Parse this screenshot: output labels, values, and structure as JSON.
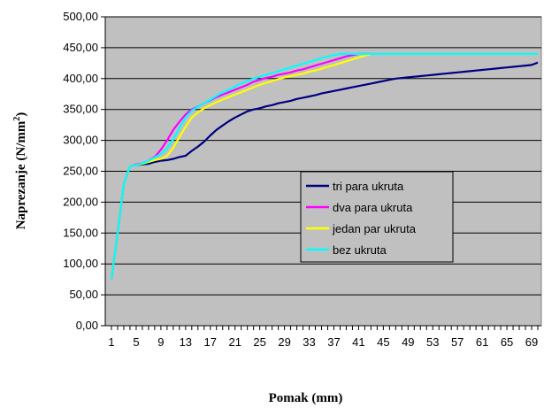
{
  "chart_data": {
    "type": "line",
    "title": "",
    "xlabel": "Pomak (mm)",
    "ylabel_main": "Naprezanje (N/mm",
    "ylabel_sup": "2",
    "ylabel_close": ")",
    "ylim": [
      0,
      500
    ],
    "yticks": [
      "0,00",
      "50,00",
      "100,00",
      "150,00",
      "200,00",
      "250,00",
      "300,00",
      "350,00",
      "400,00",
      "450,00",
      "500,00"
    ],
    "xlim": [
      1,
      70
    ],
    "xticks": [
      "1",
      "5",
      "9",
      "13",
      "17",
      "21",
      "25",
      "29",
      "33",
      "37",
      "41",
      "45",
      "49",
      "53",
      "57",
      "61",
      "65",
      "69"
    ],
    "plot_background": "#c0c0c0",
    "grid": "horizontal",
    "legend_position": "center-right",
    "series": [
      {
        "name": "tri para ukruta",
        "color": "#000080",
        "x": [
          1,
          2,
          3,
          4,
          5,
          6,
          7,
          8,
          9,
          10,
          11,
          12,
          13,
          14,
          15,
          16,
          17,
          18,
          19,
          20,
          21,
          22,
          23,
          24,
          25,
          26,
          27,
          28,
          29,
          30,
          31,
          32,
          33,
          34,
          35,
          36,
          37,
          38,
          39,
          40,
          41,
          42,
          43,
          44,
          45,
          46,
          47,
          48,
          49,
          50,
          51,
          52,
          53,
          54,
          55,
          56,
          57,
          58,
          59,
          60,
          61,
          62,
          63,
          64,
          65,
          66,
          67,
          68,
          69,
          70
        ],
        "y": [
          75,
          150,
          230,
          258,
          260,
          261,
          262,
          265,
          267,
          268,
          270,
          273,
          275,
          283,
          290,
          298,
          308,
          317,
          324,
          331,
          337,
          342,
          347,
          350,
          352,
          355,
          357,
          360,
          362,
          364,
          367,
          369,
          371,
          373,
          376,
          378,
          380,
          382,
          384,
          386,
          388,
          390,
          392,
          394,
          396,
          398,
          400,
          401,
          402,
          403,
          404,
          405,
          406,
          407,
          408,
          409,
          410,
          411,
          412,
          413,
          414,
          415,
          416,
          417,
          418,
          419,
          420,
          421,
          422,
          426
        ]
      },
      {
        "name": "dva para ukruta",
        "color": "#ff00ff",
        "x": [
          1,
          2,
          3,
          4,
          5,
          6,
          7,
          8,
          9,
          10,
          11,
          12,
          13,
          14,
          15,
          16,
          17,
          18,
          19,
          20,
          21,
          22,
          23,
          24,
          25,
          26,
          27,
          28,
          29,
          30,
          31,
          32,
          33,
          34,
          35,
          36,
          37,
          38,
          39,
          40,
          41,
          42,
          43,
          70
        ],
        "y": [
          75,
          150,
          230,
          258,
          261,
          263,
          267,
          273,
          285,
          300,
          317,
          330,
          342,
          350,
          355,
          360,
          365,
          370,
          374,
          378,
          382,
          386,
          390,
          395,
          398,
          401,
          403,
          406,
          408,
          410,
          413,
          415,
          418,
          421,
          424,
          427,
          430,
          433,
          436,
          438,
          440,
          440,
          440,
          440
        ]
      },
      {
        "name": "jedan par ukruta",
        "color": "#ffff00",
        "x": [
          1,
          2,
          3,
          4,
          5,
          6,
          7,
          8,
          9,
          10,
          11,
          12,
          13,
          14,
          15,
          16,
          17,
          18,
          19,
          20,
          21,
          22,
          23,
          24,
          25,
          26,
          27,
          28,
          29,
          30,
          31,
          32,
          33,
          34,
          35,
          36,
          37,
          38,
          39,
          40,
          41,
          42,
          43,
          44,
          70
        ],
        "y": [
          75,
          150,
          230,
          258,
          260,
          262,
          265,
          268,
          270,
          275,
          288,
          305,
          322,
          337,
          345,
          352,
          357,
          362,
          366,
          370,
          374,
          378,
          382,
          386,
          390,
          393,
          396,
          399,
          402,
          404,
          406,
          408,
          411,
          413,
          416,
          419,
          422,
          425,
          428,
          431,
          434,
          437,
          440,
          440,
          440
        ]
      },
      {
        "name": "bez ukruta",
        "color": "#00ffff",
        "x": [
          1,
          2,
          3,
          4,
          5,
          6,
          7,
          8,
          9,
          10,
          11,
          12,
          13,
          14,
          15,
          16,
          17,
          18,
          19,
          20,
          21,
          22,
          23,
          24,
          25,
          26,
          27,
          28,
          29,
          30,
          31,
          32,
          33,
          34,
          35,
          36,
          37,
          38,
          39,
          40,
          41,
          42,
          70
        ],
        "y": [
          75,
          150,
          230,
          258,
          260,
          263,
          267,
          272,
          278,
          287,
          302,
          320,
          337,
          348,
          355,
          360,
          366,
          372,
          378,
          382,
          387,
          392,
          396,
          400,
          403,
          406,
          409,
          412,
          415,
          418,
          421,
          424,
          427,
          430,
          433,
          436,
          438,
          440,
          440,
          440,
          440,
          440,
          440
        ]
      }
    ]
  }
}
